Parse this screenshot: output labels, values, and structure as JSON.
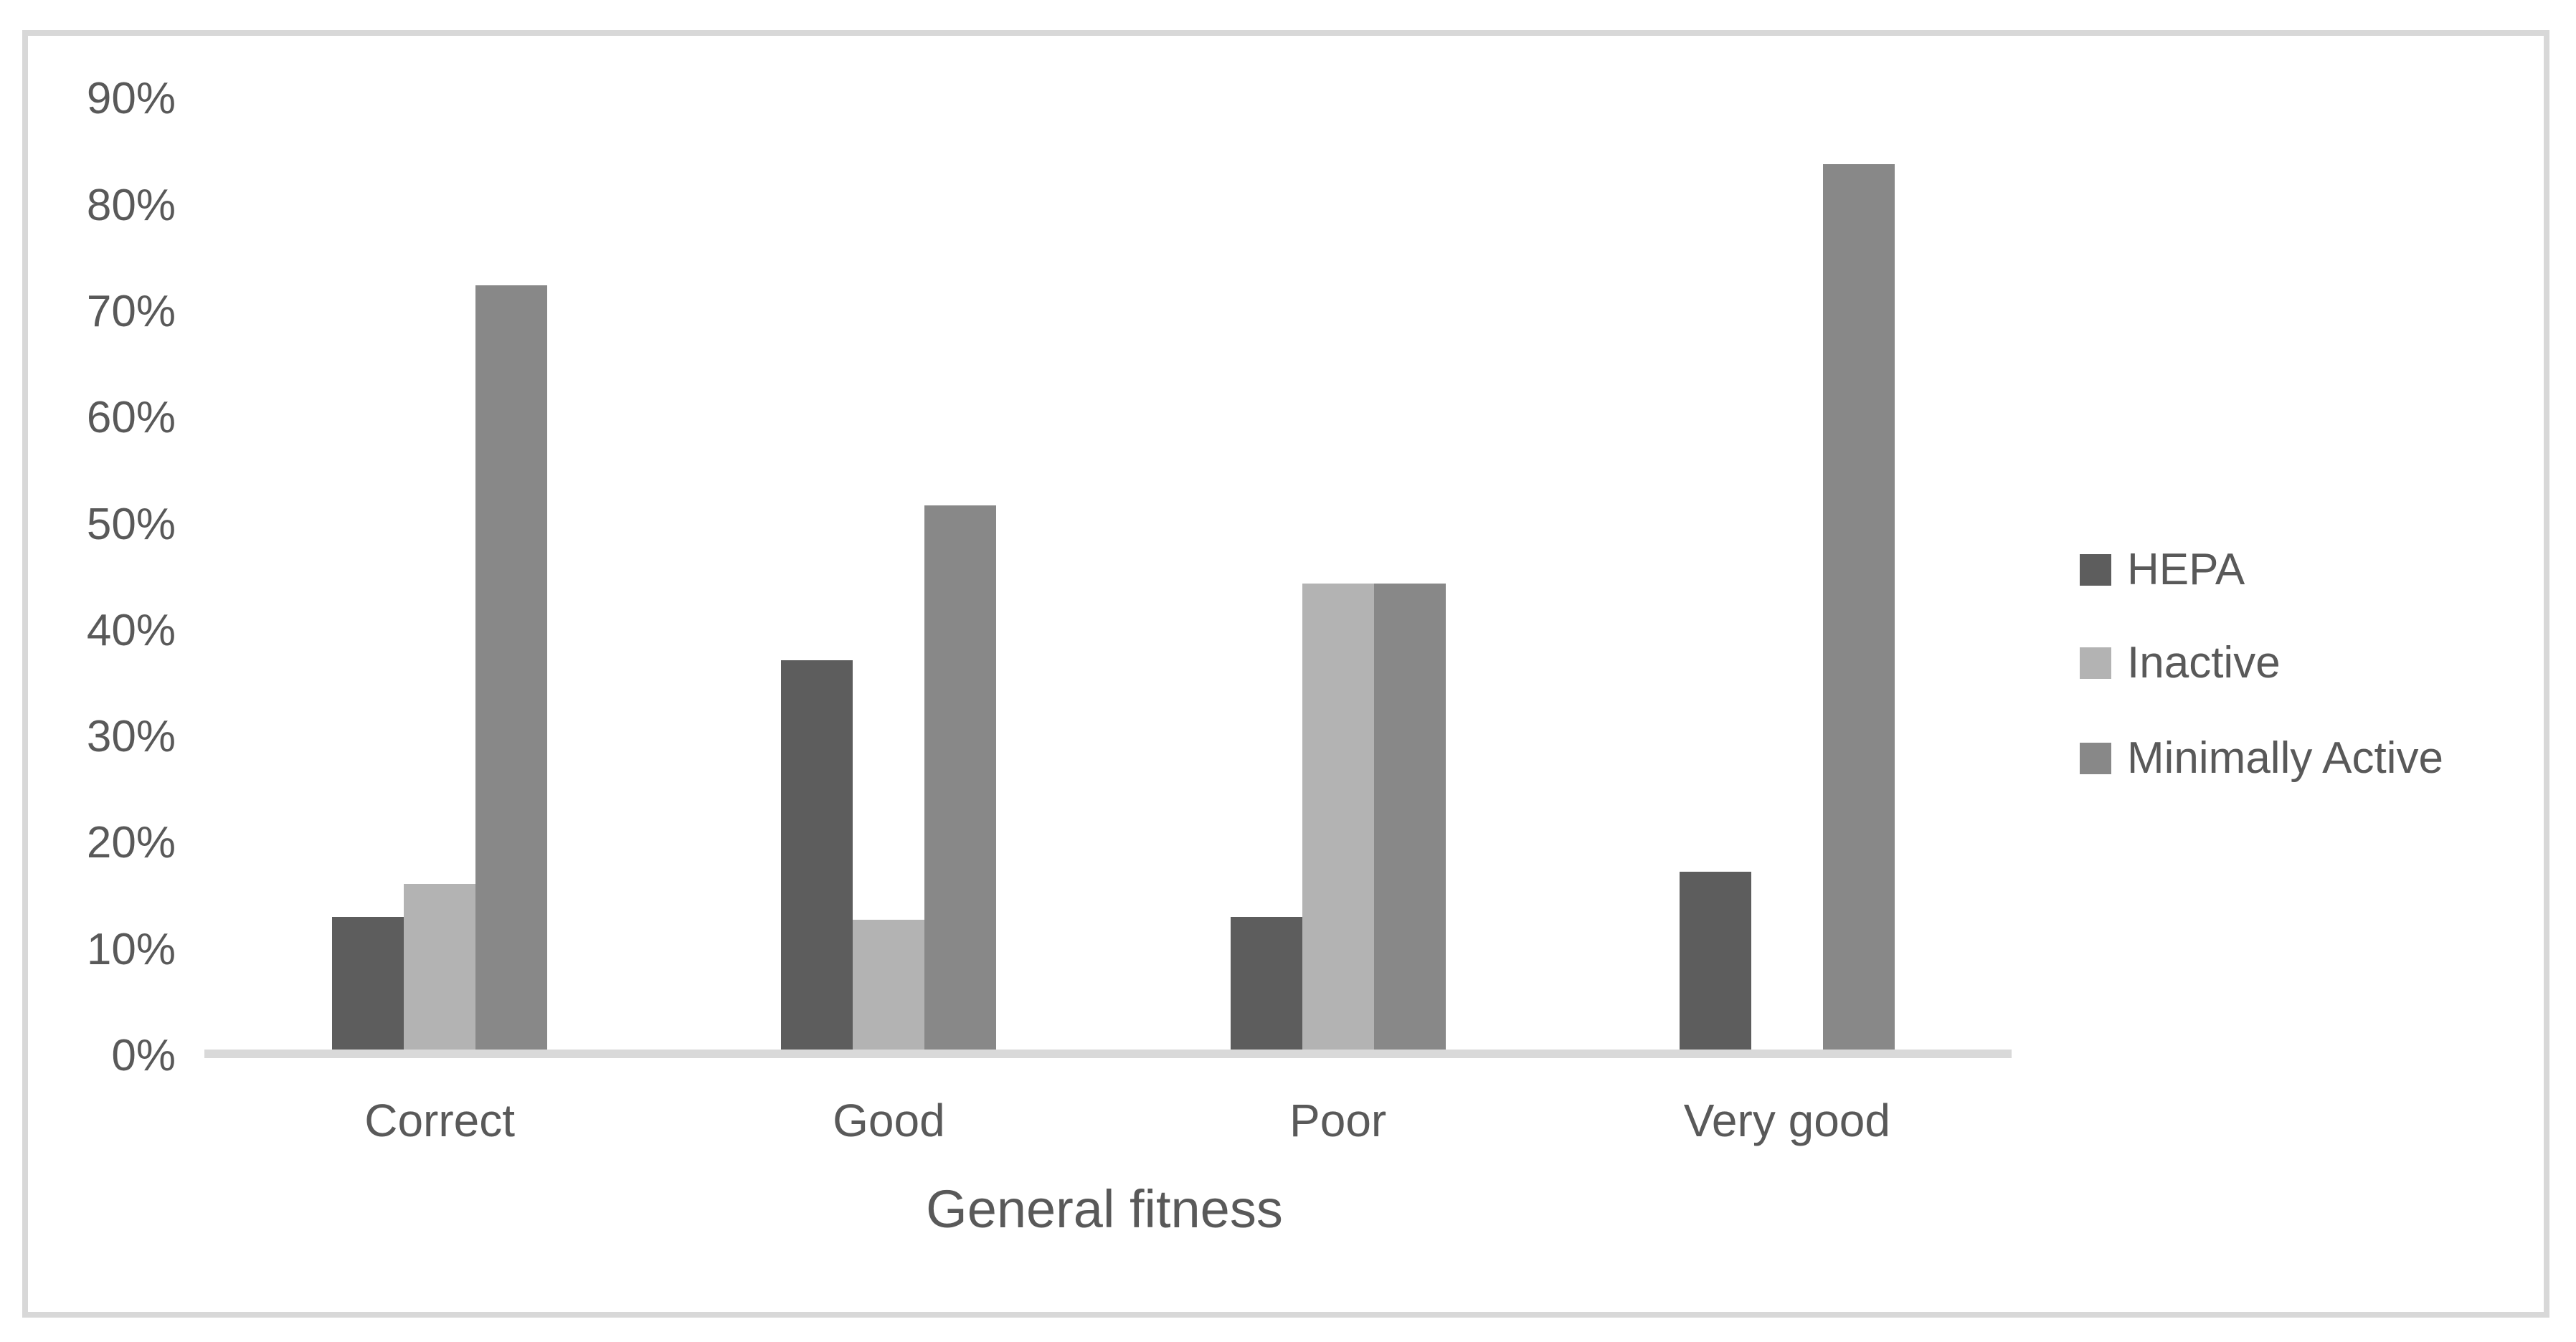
{
  "chart_data": {
    "type": "bar",
    "title": "",
    "categories": [
      "Correct",
      "Good",
      "Poor",
      "Very good"
    ],
    "series": [
      {
        "name": "HEPA",
        "color": "#5d5d5d",
        "values": [
          12.5,
          36.6,
          12.5,
          16.7
        ]
      },
      {
        "name": "Inactive",
        "color": "#b3b3b3",
        "values": [
          15.6,
          12.2,
          43.8,
          0
        ]
      },
      {
        "name": "Minimally Active",
        "color": "#888888",
        "values": [
          71.9,
          51.2,
          43.8,
          83.3
        ]
      }
    ],
    "xlabel": "General fitness",
    "ylabel": "",
    "ylim": [
      0,
      90
    ],
    "y_tick_step": 10,
    "y_ticks": [
      "0%",
      "10%",
      "20%",
      "30%",
      "40%",
      "50%",
      "60%",
      "70%",
      "80%",
      "90%"
    ],
    "grid": false,
    "legend_position": "right"
  },
  "colors": {
    "text": "#595959",
    "axis_line": "#d9d9d9",
    "frame_border": "#d8d8d8",
    "background": "#ffffff"
  }
}
